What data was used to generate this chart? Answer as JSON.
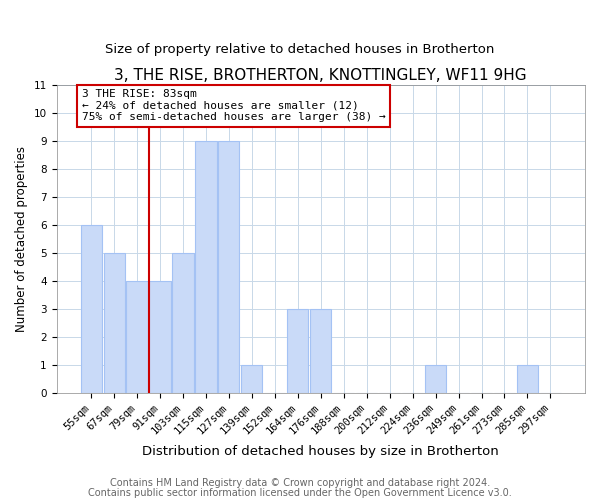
{
  "title": "3, THE RISE, BROTHERTON, KNOTTINGLEY, WF11 9HG",
  "subtitle": "Size of property relative to detached houses in Brotherton",
  "xlabel": "Distribution of detached houses by size in Brotherton",
  "ylabel": "Number of detached properties",
  "categories": [
    "55sqm",
    "67sqm",
    "79sqm",
    "91sqm",
    "103sqm",
    "115sqm",
    "127sqm",
    "139sqm",
    "152sqm",
    "164sqm",
    "176sqm",
    "188sqm",
    "200sqm",
    "212sqm",
    "224sqm",
    "236sqm",
    "249sqm",
    "261sqm",
    "273sqm",
    "285sqm",
    "297sqm"
  ],
  "values": [
    6,
    5,
    4,
    4,
    5,
    9,
    9,
    1,
    0,
    3,
    3,
    0,
    0,
    0,
    0,
    1,
    0,
    0,
    0,
    1,
    0
  ],
  "bar_color": "#c9daf8",
  "bar_edge_color": "#a4c2f4",
  "grid_color": "#c8d8e8",
  "annotation_line1": "3 THE RISE: 83sqm",
  "annotation_line2": "← 24% of detached houses are smaller (12)",
  "annotation_line3": "75% of semi-detached houses are larger (38) →",
  "annotation_box_color": "#ffffff",
  "annotation_box_edge_color": "#cc0000",
  "red_line_x": 2.5,
  "ylim": [
    0,
    11
  ],
  "yticks": [
    0,
    1,
    2,
    3,
    4,
    5,
    6,
    7,
    8,
    9,
    10,
    11
  ],
  "footer1": "Contains HM Land Registry data © Crown copyright and database right 2024.",
  "footer2": "Contains public sector information licensed under the Open Government Licence v3.0.",
  "title_fontsize": 11,
  "subtitle_fontsize": 9.5,
  "xlabel_fontsize": 9.5,
  "ylabel_fontsize": 8.5,
  "tick_fontsize": 7.5,
  "footer_fontsize": 7,
  "annotation_fontsize": 8
}
